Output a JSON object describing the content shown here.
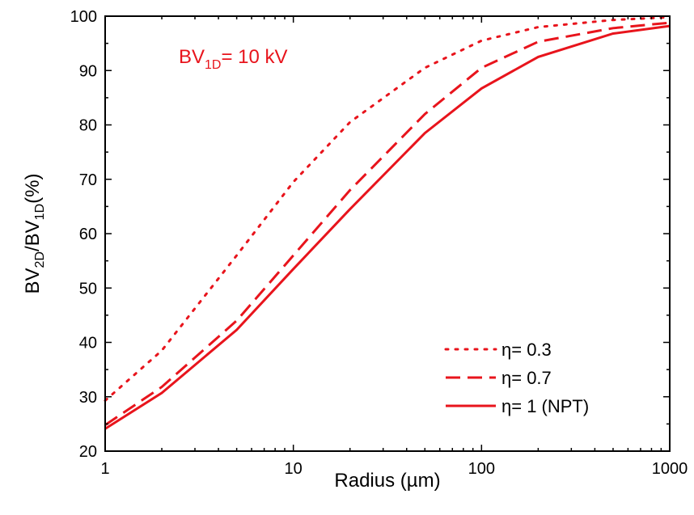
{
  "chart_data": {
    "type": "line",
    "xscale": "log",
    "xlim": [
      1,
      1000
    ],
    "ylim": [
      20,
      100
    ],
    "xticks": [
      1,
      10,
      100,
      1000
    ],
    "xtick_labels": [
      "1",
      "10",
      "100",
      "1000"
    ],
    "yticks": [
      20,
      30,
      40,
      50,
      60,
      70,
      80,
      90,
      100
    ],
    "ytick_labels": [
      "20",
      "30",
      "40",
      "50",
      "60",
      "70",
      "80",
      "90",
      "100"
    ],
    "xlabel": "Radius (µm)",
    "ylabel": {
      "pre": "BV",
      "sub1": "2D",
      "mid": "/BV",
      "sub2": "1D",
      "post": "(%)"
    },
    "annotation": {
      "pre": "BV",
      "sub": "1D",
      "post": "= 10 kV"
    },
    "legend_position": "bottom-right",
    "grid": false,
    "series_color": "#e8141c",
    "series": [
      {
        "name": "η= 0.3",
        "dash": "dotted",
        "x": [
          1,
          2,
          5,
          10,
          20,
          50,
          100,
          200,
          500,
          1000
        ],
        "y": [
          29.3,
          38.5,
          56,
          69.5,
          80.5,
          90.5,
          95.5,
          98,
          99.3,
          99.8
        ]
      },
      {
        "name": "η= 0.7",
        "dash": "dashed",
        "x": [
          1,
          2,
          5,
          10,
          20,
          50,
          100,
          200,
          500,
          1000
        ],
        "y": [
          24.8,
          31.8,
          44,
          56,
          68,
          82,
          90.5,
          95.3,
          97.8,
          98.8
        ]
      },
      {
        "name": "η= 1 (NPT)",
        "dash": "solid",
        "x": [
          1,
          2,
          5,
          10,
          20,
          50,
          100,
          200,
          500,
          1000
        ],
        "y": [
          24.1,
          30.7,
          42.3,
          53.5,
          64.5,
          78.5,
          86.7,
          92.5,
          96.8,
          98.2
        ]
      }
    ]
  }
}
